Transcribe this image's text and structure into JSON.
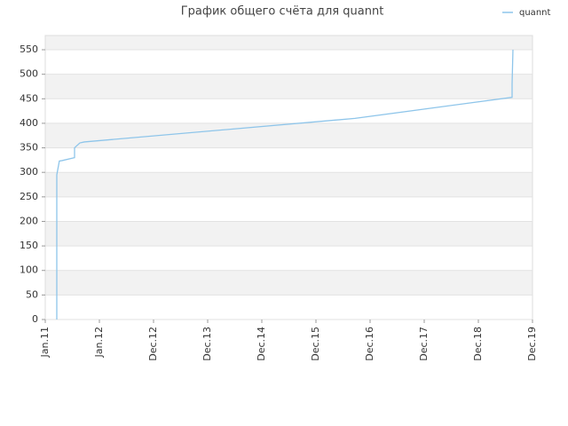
{
  "chart_data": {
    "type": "line",
    "title": "График общего счёта для quannt",
    "x": [
      0.213,
      0.213,
      0.26,
      0.311,
      0.541,
      0.541,
      0.639,
      0.721,
      5.72,
      8.623,
      8.623,
      8.639
    ],
    "series": [
      {
        "name": "quannt",
        "color": "#8ec5ea",
        "values": [
          0,
          295,
          323,
          324,
          330,
          350,
          360,
          362,
          410,
          453,
          480,
          550
        ]
      }
    ],
    "xlim": [
      0,
      9
    ],
    "xticks": [
      {
        "value": 0,
        "label": "Jan.11"
      },
      {
        "value": 1,
        "label": "Jan.12"
      },
      {
        "value": 2,
        "label": "Dec.12"
      },
      {
        "value": 3,
        "label": "Dec.13"
      },
      {
        "value": 4,
        "label": "Dec.14"
      },
      {
        "value": 5,
        "label": "Dec.15"
      },
      {
        "value": 6,
        "label": "Dec.16"
      },
      {
        "value": 7,
        "label": "Dec.17"
      },
      {
        "value": 8,
        "label": "Dec.18"
      },
      {
        "value": 9,
        "label": "Dec.19"
      }
    ],
    "ylim": [
      0,
      579
    ],
    "yticks": [
      0,
      50,
      100,
      150,
      200,
      250,
      300,
      350,
      400,
      450,
      500,
      550
    ],
    "grid": true,
    "legend": "top-right"
  }
}
